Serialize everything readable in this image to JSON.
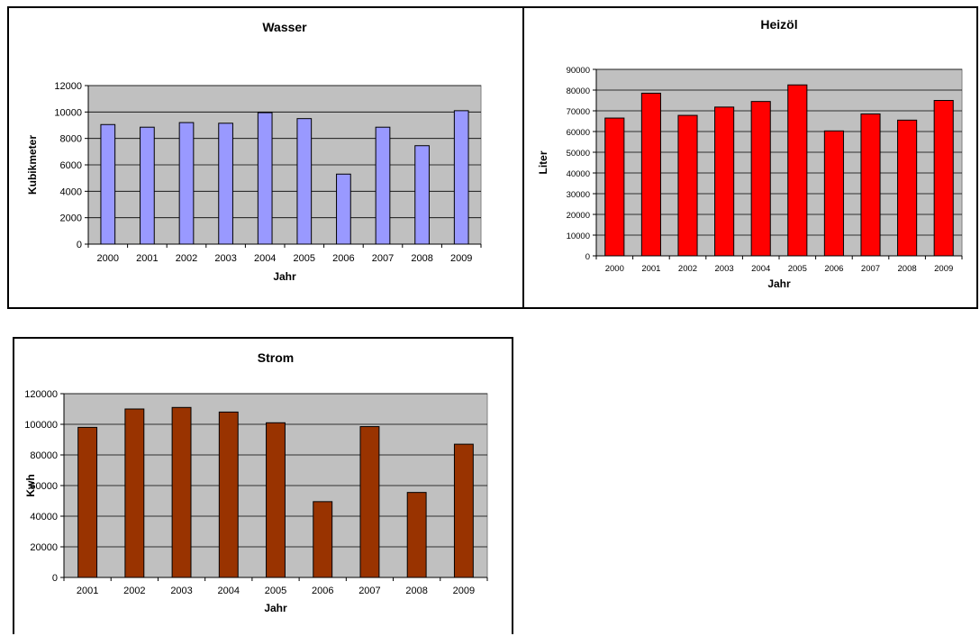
{
  "chart_data": [
    {
      "type": "bar",
      "title": "Wasser",
      "xlabel": "Jahr",
      "ylabel": "Kubikmeter",
      "categories": [
        "2000",
        "2001",
        "2002",
        "2003",
        "2004",
        "2005",
        "2006",
        "2007",
        "2008",
        "2009"
      ],
      "values": [
        9050,
        8850,
        9200,
        9150,
        9950,
        9500,
        5300,
        8850,
        7450,
        10100
      ],
      "ylim": [
        0,
        12000
      ],
      "yticks": [
        0,
        2000,
        4000,
        6000,
        8000,
        10000,
        12000
      ],
      "bar_color": "#9999ff",
      "plot_bg": "#c0c0c0",
      "grid": true,
      "legend": false
    },
    {
      "type": "bar",
      "title": "Heizöl",
      "xlabel": "Jahr",
      "ylabel": "Liter",
      "categories": [
        "2000",
        "2001",
        "2002",
        "2003",
        "2004",
        "2005",
        "2006",
        "2007",
        "2008",
        "2009"
      ],
      "values": [
        66500,
        78500,
        67800,
        71800,
        74500,
        82500,
        60300,
        68500,
        65500,
        75000
      ],
      "ylim": [
        0,
        90000
      ],
      "yticks": [
        0,
        10000,
        20000,
        30000,
        40000,
        50000,
        60000,
        70000,
        80000,
        90000
      ],
      "bar_color": "#ff0000",
      "plot_bg": "#c0c0c0",
      "grid": true,
      "legend": false
    },
    {
      "type": "bar",
      "title": "Strom",
      "xlabel": "Jahr",
      "ylabel": "Kwh",
      "categories": [
        "2001",
        "2002",
        "2003",
        "2004",
        "2005",
        "2006",
        "2007",
        "2008",
        "2009"
      ],
      "values": [
        98000,
        110000,
        111000,
        108000,
        101000,
        49500,
        98500,
        55500,
        87000
      ],
      "ylim": [
        0,
        120000
      ],
      "yticks": [
        0,
        20000,
        40000,
        60000,
        80000,
        100000,
        120000
      ],
      "bar_color": "#993300",
      "plot_bg": "#c0c0c0",
      "grid": true,
      "legend": false
    }
  ]
}
